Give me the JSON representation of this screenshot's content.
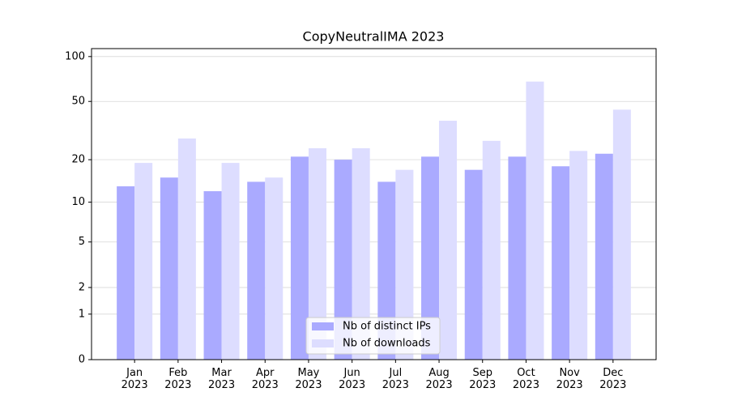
{
  "chart_data": {
    "type": "bar",
    "title": "CopyNeutralIMA 2023",
    "categories": [
      "Jan\n2023",
      "Feb\n2023",
      "Mar\n2023",
      "Apr\n2023",
      "May\n2023",
      "Jun\n2023",
      "Jul\n2023",
      "Aug\n2023",
      "Sep\n2023",
      "Oct\n2023",
      "Nov\n2023",
      "Dec\n2023"
    ],
    "series": [
      {
        "name": "Nb of distinct IPs",
        "color": "#aaaaff",
        "values": [
          13,
          15,
          12,
          14,
          21,
          20,
          14,
          21,
          17,
          21,
          18,
          22
        ]
      },
      {
        "name": "Nb of downloads",
        "color": "#ddddff",
        "values": [
          19,
          28,
          19,
          15,
          24,
          24,
          17,
          37,
          27,
          68,
          23,
          44
        ]
      }
    ],
    "yscale": "log1p",
    "ylim": [
      0,
      113
    ],
    "yticks": [
      0,
      1,
      2,
      5,
      10,
      20,
      50,
      100
    ],
    "grid": true,
    "legend": "lower center"
  }
}
